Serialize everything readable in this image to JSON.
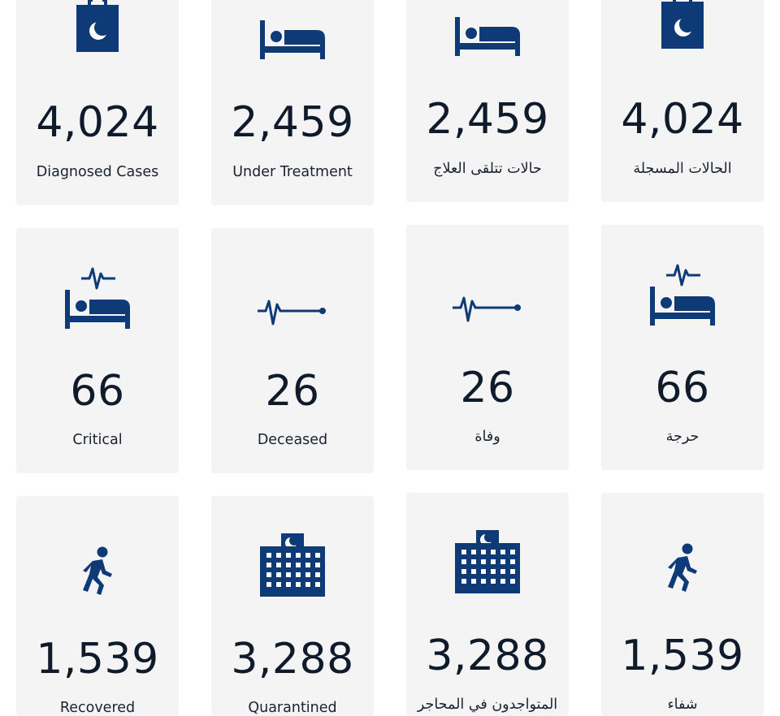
{
  "brand_color": "#0e3a78",
  "cards": [
    {
      "icon": "clipboard-crescent-icon",
      "value": "4,024",
      "label": "Diagnosed Cases"
    },
    {
      "icon": "hospital-bed-icon",
      "value": "2,459",
      "label": "Under Treatment"
    },
    {
      "icon": "hospital-bed-icon",
      "value": "2,459",
      "label": "حالات تتلقى العلاج"
    },
    {
      "icon": "clipboard-crescent-icon",
      "value": "4,024",
      "label": "الحالات المسجلة"
    },
    {
      "icon": "critical-bed-heartbeat-icon",
      "value": "66",
      "label": "Critical"
    },
    {
      "icon": "flatline-pulse-icon",
      "value": "26",
      "label": "Deceased"
    },
    {
      "icon": "flatline-pulse-icon",
      "value": "26",
      "label": "وفاة"
    },
    {
      "icon": "critical-bed-heartbeat-icon",
      "value": "66",
      "label": "حرجة"
    },
    {
      "icon": "walking-person-icon",
      "value": "1,539",
      "label": "Recovered"
    },
    {
      "icon": "quarantine-building-icon",
      "value": "3,288",
      "label": "Quarantined"
    },
    {
      "icon": "quarantine-building-icon",
      "value": "3,288",
      "label": "المتواجدون في المحاجر"
    },
    {
      "icon": "walking-person-icon",
      "value": "1,539",
      "label": "شفاء"
    }
  ]
}
